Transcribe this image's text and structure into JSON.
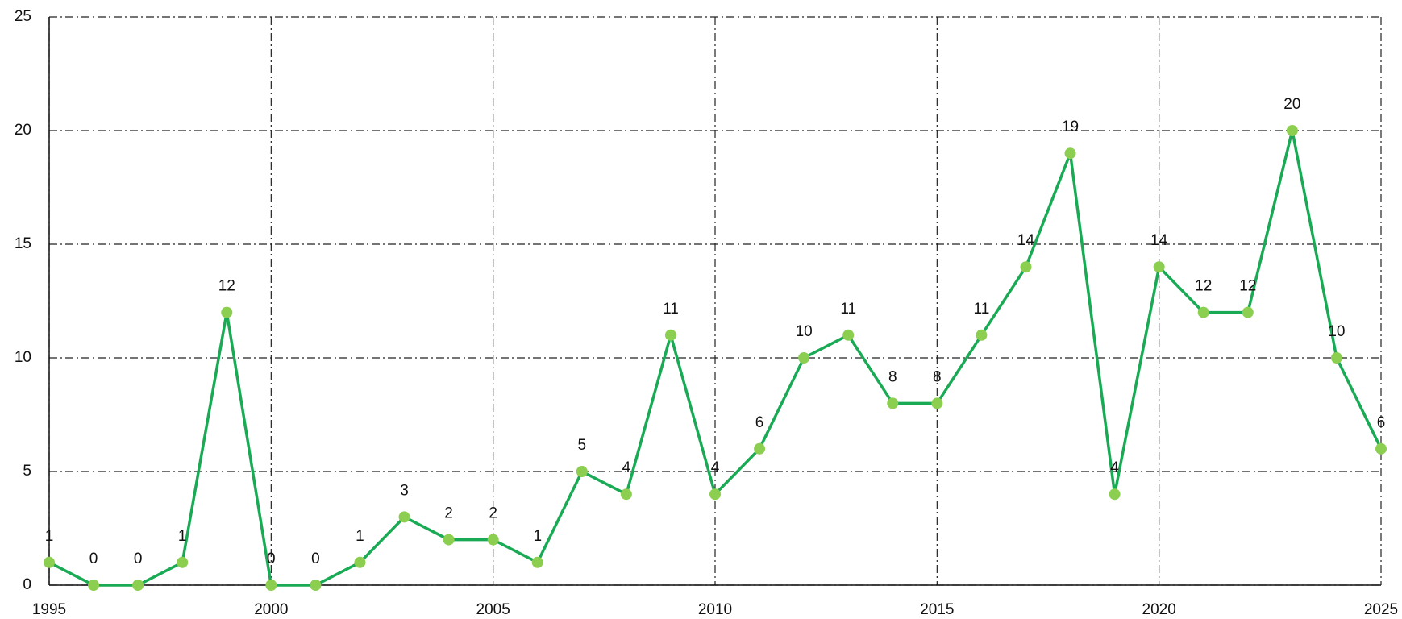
{
  "chart_data": {
    "type": "line",
    "x": [
      1995,
      1996,
      1997,
      1998,
      1999,
      2000,
      2001,
      2002,
      2003,
      2004,
      2005,
      2006,
      2007,
      2008,
      2009,
      2010,
      2011,
      2012,
      2013,
      2014,
      2015,
      2016,
      2017,
      2018,
      2019,
      2020,
      2021,
      2022,
      2023,
      2024,
      2025
    ],
    "series": [
      {
        "color": "#1aaa55",
        "marker_color": "#8ccf50",
        "values": [
          1,
          0,
          0,
          1,
          12,
          0,
          0,
          1,
          3,
          2,
          2,
          1,
          5,
          4,
          11,
          4,
          6,
          10,
          11,
          8,
          8,
          11,
          14,
          19,
          4,
          14,
          12,
          12,
          20,
          10,
          6
        ]
      }
    ],
    "xlim": [
      1995,
      2025
    ],
    "xticks": [
      1995,
      2000,
      2005,
      2010,
      2015,
      2020,
      2025
    ],
    "ylim": [
      0,
      25
    ],
    "yticks": [
      0,
      5,
      10,
      15,
      20,
      25
    ],
    "grid": true,
    "data_labels": true
  }
}
